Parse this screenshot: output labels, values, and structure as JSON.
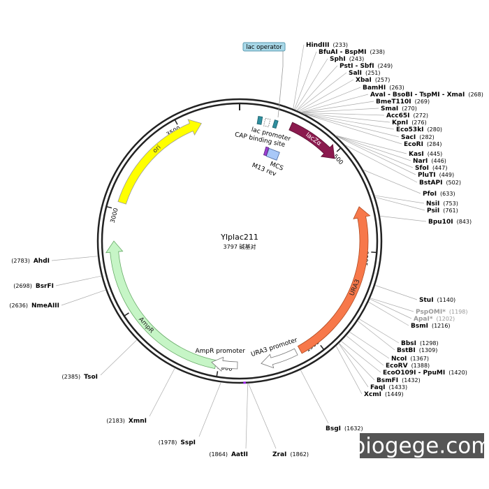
{
  "title": "YIplac211",
  "subtitle": "3797 碱基对",
  "ruler": [
    "500",
    "1000",
    "1500",
    "2000",
    "2500",
    "3000",
    "3500"
  ],
  "features": {
    "ori": "ori",
    "lacZa": "lacZα",
    "ura3": "URA3",
    "ampr": "AmpR",
    "lac_promoter": "lac promoter",
    "cap_site": "CAP binding site",
    "mcs": "MCS",
    "m13rev": "M13 rev",
    "lac_operator": "lac operator",
    "ampr_promoter": "AmpR promoter",
    "ura3_promoter": "URA3 promoter"
  },
  "sites": [
    {
      "name": "HindIII",
      "position": "(233)"
    },
    {
      "name": "BfuAI - BspMI",
      "position": "(238)"
    },
    {
      "name": "SphI",
      "position": "(243)"
    },
    {
      "name": "PstI - SbfI",
      "position": "(249)"
    },
    {
      "name": "SalI",
      "position": "(251)"
    },
    {
      "name": "XbaI",
      "position": "(257)"
    },
    {
      "name": "BamHI",
      "position": "(263)"
    },
    {
      "name": "AvaI - BsoBI - TspMI - XmaI",
      "position": "(268)"
    },
    {
      "name": "BmeT110I",
      "position": "(269)"
    },
    {
      "name": "SmaI",
      "position": "(270)"
    },
    {
      "name": "Acc65I",
      "position": "(272)"
    },
    {
      "name": "KpnI",
      "position": "(276)"
    },
    {
      "name": "Eco53kI",
      "position": "(280)"
    },
    {
      "name": "SacI",
      "position": "(282)"
    },
    {
      "name": "EcoRI",
      "position": "(284)"
    },
    {
      "name": "KasI",
      "position": "(445)"
    },
    {
      "name": "NarI",
      "position": "(446)"
    },
    {
      "name": "SfoI",
      "position": "(447)"
    },
    {
      "name": "PluTI",
      "position": "(449)"
    },
    {
      "name": "BstAPI",
      "position": "(502)"
    },
    {
      "name": "PfoI",
      "position": "(633)"
    },
    {
      "name": "NsiI",
      "position": "(753)"
    },
    {
      "name": "PsiI",
      "position": "(761)"
    },
    {
      "name": "Bpu10I",
      "position": "(843)"
    },
    {
      "name": "StuI",
      "position": "(1140)"
    },
    {
      "name": "PspOMI*",
      "position": "(1198)"
    },
    {
      "name": "ApaI*",
      "position": "(1202)"
    },
    {
      "name": "BsmI",
      "position": "(1216)"
    },
    {
      "name": "BbsI",
      "position": "(1298)"
    },
    {
      "name": "BstBI",
      "position": "(1309)"
    },
    {
      "name": "NcoI",
      "position": "(1367)"
    },
    {
      "name": "EcoRV",
      "position": "(1388)"
    },
    {
      "name": "EcoO109I - PpuMI",
      "position": "(1420)"
    },
    {
      "name": "BsmFI",
      "position": "(1432)"
    },
    {
      "name": "FaqI",
      "position": "(1433)"
    },
    {
      "name": "XcmI",
      "position": "(1449)"
    },
    {
      "name": "BsgI",
      "position": "(1632)"
    },
    {
      "name": "ZraI",
      "position": "(1862)"
    },
    {
      "name": "AatII",
      "position": "(1864)"
    },
    {
      "name": "SspI",
      "position": "(1978)"
    },
    {
      "name": "XmnI",
      "position": "(2183)"
    },
    {
      "name": "TsoI",
      "position": "(2385)"
    },
    {
      "name": "NmeAIII",
      "position": "(2636)"
    },
    {
      "name": "BsrFI",
      "position": "(2698)"
    },
    {
      "name": "AhdI",
      "position": "(2783)"
    }
  ],
  "watermark": "biogege.com"
}
